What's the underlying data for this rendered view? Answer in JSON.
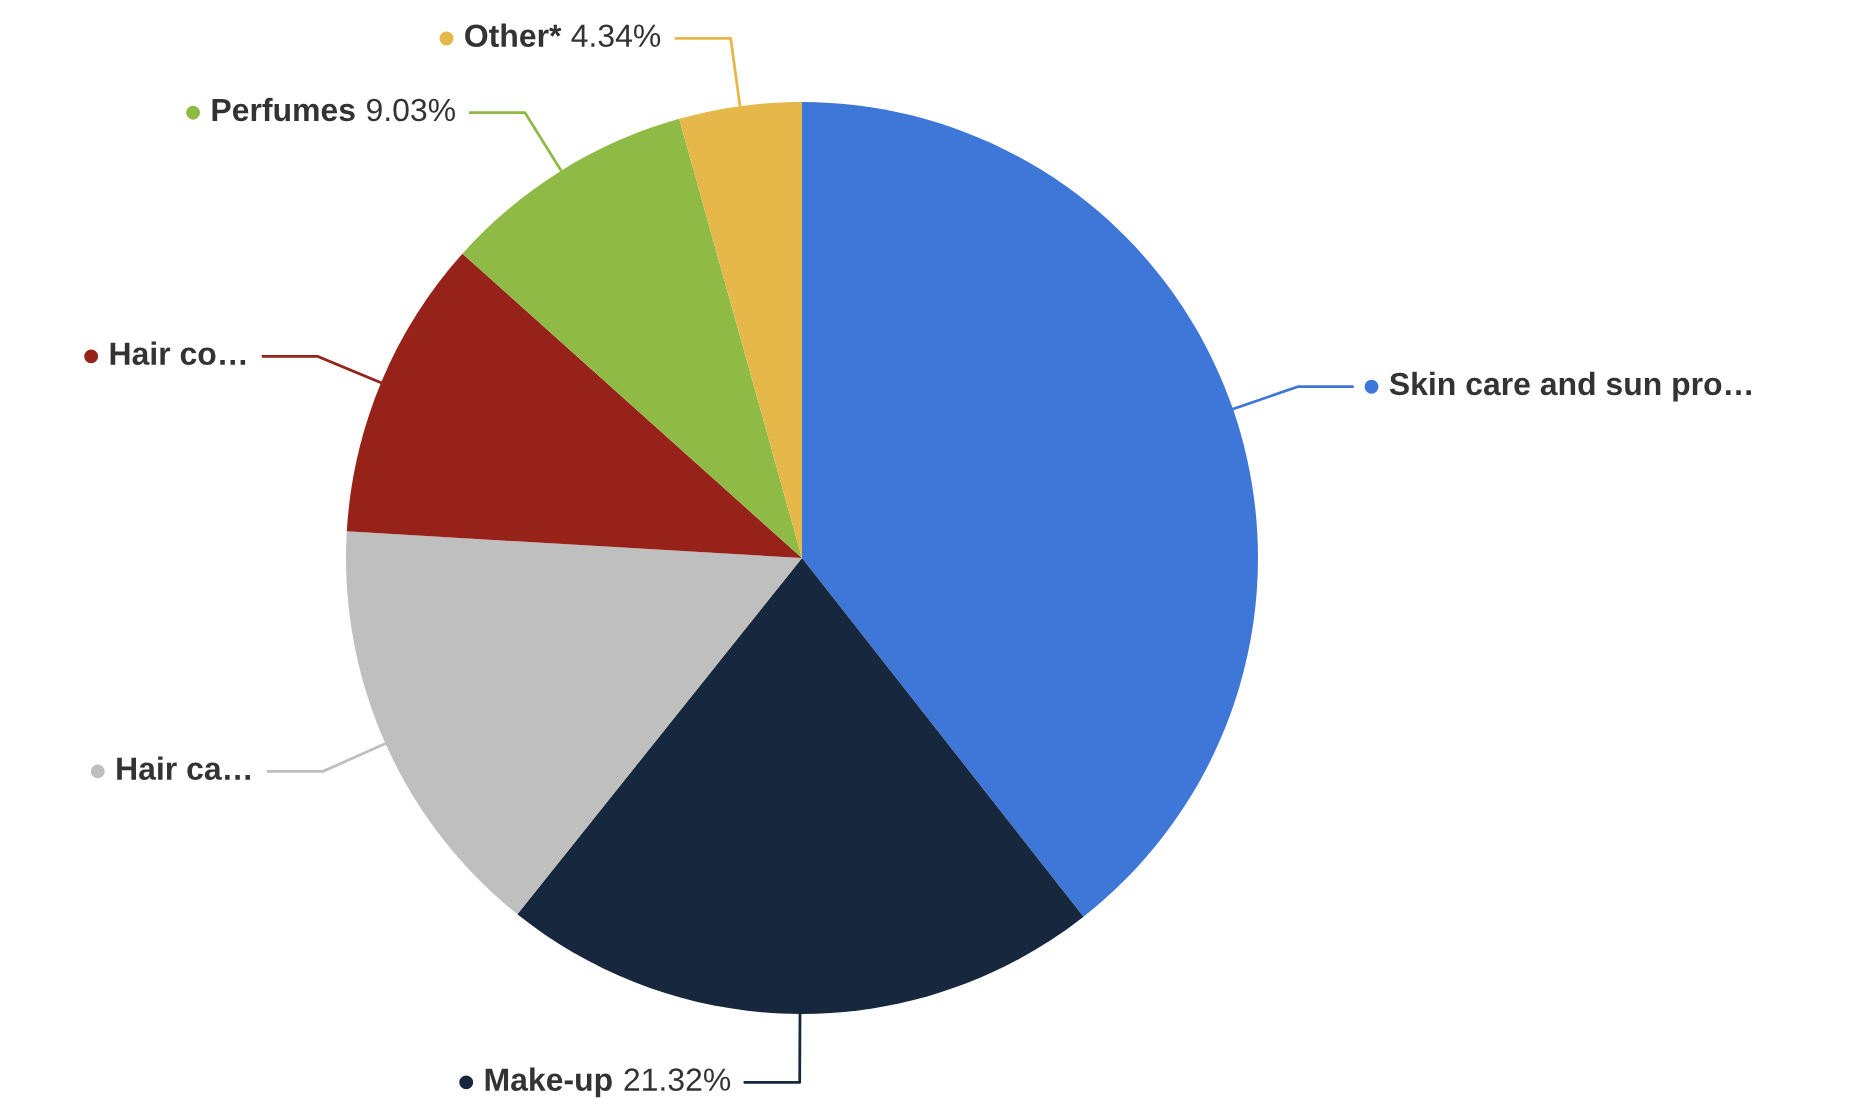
{
  "chart_data": {
    "type": "pie",
    "categories": [
      "Skin care and sun pro…",
      "Make-up",
      "Hair ca…",
      "Hair co…",
      "Perfumes",
      "Other*"
    ],
    "values": [
      39.41,
      21.32,
      15.2,
      10.7,
      9.03,
      4.34
    ],
    "value_labels": [
      null,
      "21.32%",
      null,
      null,
      "9.03%",
      "4.34%"
    ],
    "colors": [
      "#3f77d9",
      "#17273d",
      "#bfbfbf",
      "#962219",
      "#8fba45",
      "#e6b84a"
    ],
    "legend": "bottom right"
  }
}
